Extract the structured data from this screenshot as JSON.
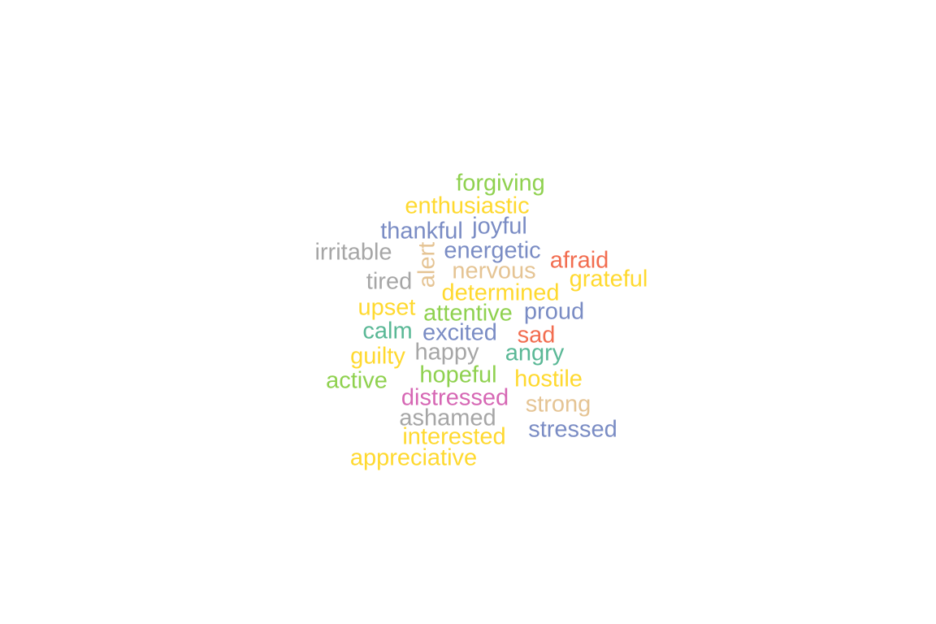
{
  "words": [
    {
      "text": "forgiving",
      "color": "#8fd14f"
    },
    {
      "text": "enthusiastic",
      "color": "#ffd92f"
    },
    {
      "text": "thankful",
      "color": "#7a8cc4"
    },
    {
      "text": "joyful",
      "color": "#7a8cc4"
    },
    {
      "text": "irritable",
      "color": "#a6a6a6"
    },
    {
      "text": "alert",
      "color": "#e5c494"
    },
    {
      "text": "energetic",
      "color": "#7a8cc4"
    },
    {
      "text": "afraid",
      "color": "#f26d50"
    },
    {
      "text": "nervous",
      "color": "#e5c494"
    },
    {
      "text": "tired",
      "color": "#a6a6a6"
    },
    {
      "text": "grateful",
      "color": "#ffd92f"
    },
    {
      "text": "determined",
      "color": "#ffd92f"
    },
    {
      "text": "upset",
      "color": "#ffd92f"
    },
    {
      "text": "attentive",
      "color": "#8fd14f"
    },
    {
      "text": "proud",
      "color": "#7a8cc4"
    },
    {
      "text": "calm",
      "color": "#5ab896"
    },
    {
      "text": "excited",
      "color": "#7a8cc4"
    },
    {
      "text": "sad",
      "color": "#f26d50"
    },
    {
      "text": "guilty",
      "color": "#ffd92f"
    },
    {
      "text": "happy",
      "color": "#a6a6a6"
    },
    {
      "text": "angry",
      "color": "#5ab896"
    },
    {
      "text": "active",
      "color": "#8fd14f"
    },
    {
      "text": "hopeful",
      "color": "#8fd14f"
    },
    {
      "text": "hostile",
      "color": "#ffd92f"
    },
    {
      "text": "distressed",
      "color": "#d667b4"
    },
    {
      "text": "strong",
      "color": "#e5c494"
    },
    {
      "text": "ashamed",
      "color": "#a6a6a6"
    },
    {
      "text": "stressed",
      "color": "#7a8cc4"
    },
    {
      "text": "interested",
      "color": "#ffd92f"
    },
    {
      "text": "appreciative",
      "color": "#ffd92f"
    }
  ]
}
